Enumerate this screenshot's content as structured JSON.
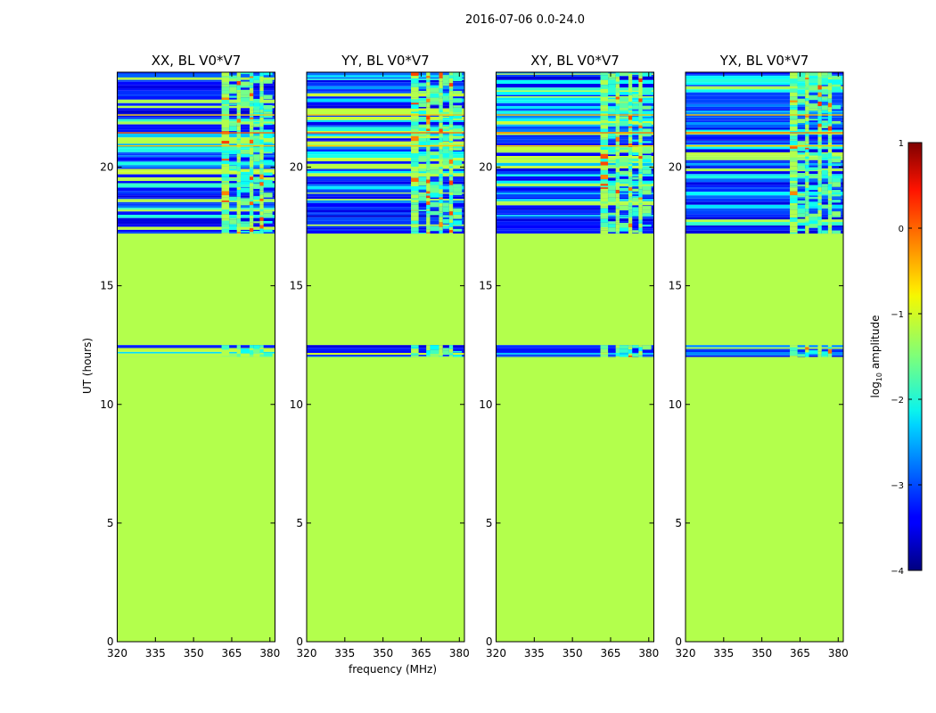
{
  "figure_title": "2016-07-06 0.0-24.0",
  "chart_data": {
    "type": "heatmap",
    "title": "2016-07-06 0.0-24.0",
    "xlabel": "frequency (MHz)",
    "ylabel": "UT (hours)",
    "xlim": [
      320,
      382
    ],
    "ylim": [
      0,
      24
    ],
    "xticks": [
      320,
      335,
      350,
      365,
      380
    ],
    "yticks": [
      0,
      5,
      10,
      15,
      20
    ],
    "panels": [
      {
        "title": "XX, BL V0*V7",
        "show_xlabel": false,
        "warm_strength": 0.8
      },
      {
        "title": "YY, BL V0*V7",
        "show_xlabel": true,
        "warm_strength": 0.9
      },
      {
        "title": "XY, BL V0*V7",
        "show_xlabel": false,
        "warm_strength": 0.55
      },
      {
        "title": "YX, BL V0*V7",
        "show_xlabel": false,
        "warm_strength": 0.5
      }
    ],
    "flagged_fill_value": -1.25,
    "flagged_ranges_ut": [
      [
        0,
        12.0
      ],
      [
        12.5,
        17.2
      ]
    ],
    "data_ranges_ut": [
      [
        12.0,
        12.5
      ],
      [
        17.2,
        24.0
      ]
    ],
    "rfi_band_mhz": [
      361,
      381
    ],
    "rfi_band_columns_mhz": [
      361,
      364,
      367,
      368.5,
      372,
      373.5,
      376,
      377.5,
      381
    ],
    "colorbar": {
      "label": "log10 amplitude",
      "label_main": "log",
      "label_sub": "10",
      "label_rest": " amplitude",
      "range": [
        -4,
        1
      ],
      "ticks": [
        1,
        0,
        -1,
        -2,
        -3,
        -4
      ],
      "tick_labels": [
        "1",
        "0",
        "−1",
        "−2",
        "−3",
        "−4"
      ],
      "colormap": "jet"
    }
  }
}
